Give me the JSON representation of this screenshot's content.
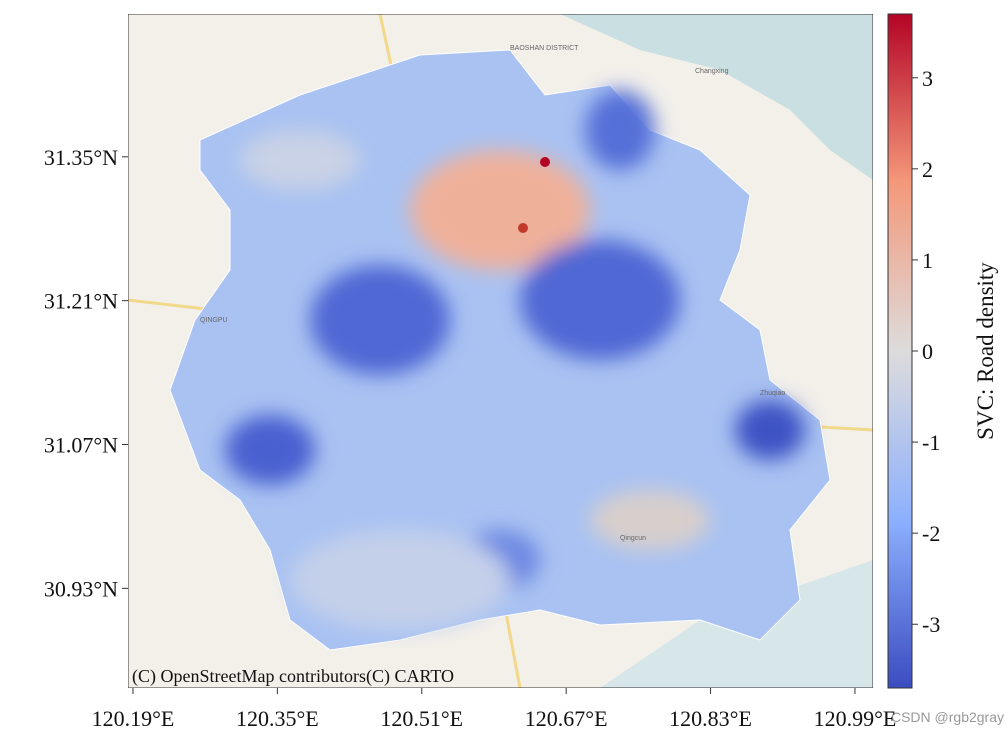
{
  "map": {
    "xlim": [
      120.1845,
      121.01
    ],
    "ylim": [
      30.833,
      31.489
    ],
    "xticks": [
      {
        "value": 120.19,
        "label": "120.19°E"
      },
      {
        "value": 120.35,
        "label": "120.35°E"
      },
      {
        "value": 120.51,
        "label": "120.51°E"
      },
      {
        "value": 120.67,
        "label": "120.67°E"
      },
      {
        "value": 120.83,
        "label": "120.83°E"
      },
      {
        "value": 120.99,
        "label": "120.99°E"
      }
    ],
    "yticks": [
      {
        "value": 31.35,
        "label": "31.35°N"
      },
      {
        "value": 31.21,
        "label": "31.21°N"
      },
      {
        "value": 31.07,
        "label": "31.07°N"
      },
      {
        "value": 30.93,
        "label": "30.93°N"
      }
    ],
    "colorbar": {
      "label": "SVC: Road density",
      "lim": [
        -3.7,
        3.7
      ],
      "ticks": [
        3,
        2,
        1,
        0,
        -1,
        -2,
        -3
      ]
    },
    "attribution": "(C) OpenStreetMap contributors(C) CARTO",
    "places": [
      "BAOSHAN DISTRICT",
      "QINGPU",
      "Changxing",
      "Zhuqiao",
      "Qingcun"
    ]
  },
  "watermark": "CSDN @rgb2gray"
}
